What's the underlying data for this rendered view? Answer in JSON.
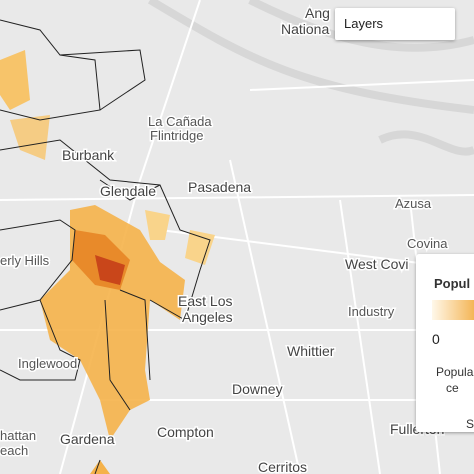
{
  "layers_button": "Layers",
  "map_labels": [
    "Ang",
    "Nationa",
    "La Cañada",
    "Flintridge",
    "Burbank",
    "Glendale",
    "Pasadena",
    "Azusa",
    "Covina",
    "West Covi",
    "Industry",
    "erly Hills",
    "East Los",
    "Angeles",
    "Whittier",
    "Downey",
    "Inglewood",
    "Compton",
    "Gardena",
    "hattan",
    "each",
    "Cerritos",
    "Fullerton"
  ],
  "legend": {
    "title": "Popul",
    "min": "0",
    "caption_line1": "Popula",
    "caption_line2": "ce",
    "footer": "S"
  }
}
